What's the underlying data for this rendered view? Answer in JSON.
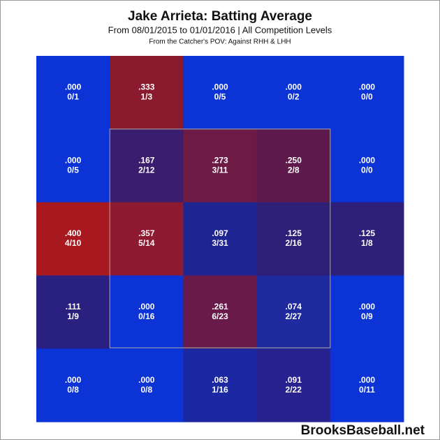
{
  "chart_data": {
    "type": "heatmap",
    "title": "Jake Arrieta: Batting Average",
    "subtitle": "From 08/01/2015 to 01/01/2016 | All Competition Levels",
    "note": "From the Catcher's POV:   Against RHH & LHH",
    "source": "BrooksBaseball.net",
    "values": [
      [
        0,
        0.333,
        0,
        0,
        0
      ],
      [
        0,
        0.167,
        0.273,
        0.25,
        0
      ],
      [
        0.4,
        0.357,
        0.097,
        0.125,
        0.125
      ],
      [
        0.111,
        0,
        0.261,
        0.074,
        0
      ],
      [
        0,
        0,
        0.063,
        0.091,
        0
      ]
    ],
    "value_labels": [
      [
        ".000",
        ".333",
        ".000",
        ".000",
        ".000"
      ],
      [
        ".000",
        ".167",
        ".273",
        ".250",
        ".000"
      ],
      [
        ".400",
        ".357",
        ".097",
        ".125",
        ".125"
      ],
      [
        ".111",
        ".000",
        ".261",
        ".074",
        ".000"
      ],
      [
        ".000",
        ".000",
        ".063",
        ".091",
        ".000"
      ]
    ],
    "counts": [
      [
        "0/1",
        "1/3",
        "0/5",
        "0/2",
        "0/0"
      ],
      [
        "0/5",
        "2/12",
        "3/11",
        "2/8",
        "0/0"
      ],
      [
        "4/10",
        "5/14",
        "3/31",
        "2/16",
        "1/8"
      ],
      [
        "1/9",
        "0/16",
        "6/23",
        "2/27",
        "0/9"
      ],
      [
        "0/8",
        "0/8",
        "1/16",
        "2/22",
        "0/11"
      ]
    ],
    "colors": [
      [
        "#0b33d6",
        "#8a1a2e",
        "#0b33d6",
        "#0b33d6",
        "#0b33d6"
      ],
      [
        "#0b33d6",
        "#3b1d6e",
        "#6d1a44",
        "#5e1a4c",
        "#0b33d6"
      ],
      [
        "#a8191f",
        "#8d1a30",
        "#1e2592",
        "#2e1f79",
        "#2e1f79"
      ],
      [
        "#2a2080",
        "#0b33d6",
        "#691a48",
        "#1f2a9f",
        "#0b33d6"
      ],
      [
        "#0b33d6",
        "#0b33d6",
        "#1c27a2",
        "#282290",
        "#0b33d6"
      ]
    ]
  }
}
